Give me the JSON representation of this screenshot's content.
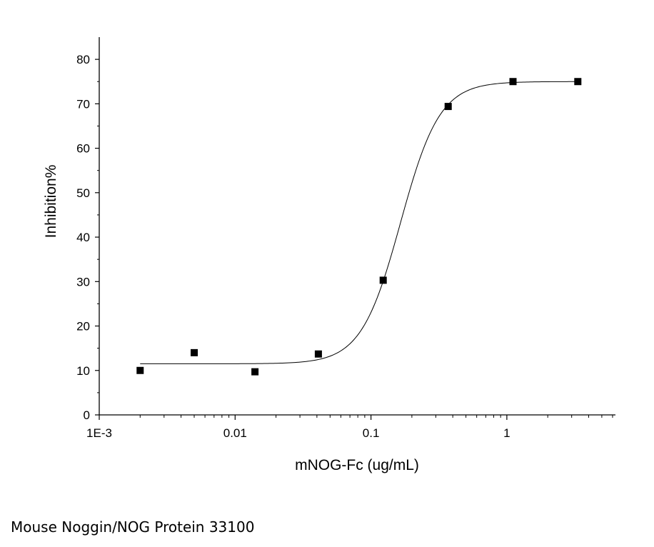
{
  "chart_data": {
    "type": "scatter",
    "xlabel": "mNOG-Fc (ug/mL)",
    "ylabel": "Inhibition%",
    "xscale": "log",
    "xlim": [
      0.001,
      6.3
    ],
    "ylim": [
      0,
      85
    ],
    "x_ticks": [
      0.001,
      0.01,
      0.1,
      1
    ],
    "x_tick_labels": [
      "1E-3",
      "0.01",
      "0.1",
      "1"
    ],
    "y_ticks": [
      0,
      10,
      20,
      30,
      40,
      50,
      60,
      70,
      80
    ],
    "y_tick_labels": [
      "0",
      "10",
      "20",
      "30",
      "40",
      "50",
      "60",
      "70",
      "80"
    ],
    "grid": false,
    "series": [
      {
        "marker": "square",
        "x": [
          0.002,
          0.005,
          0.014,
          0.041,
          0.123,
          0.37,
          1.11,
          3.33
        ],
        "y": [
          10,
          14,
          9.7,
          13.7,
          30.3,
          69.4,
          75,
          75
        ]
      }
    ],
    "fit_curve": {
      "model": "4PL",
      "bottom": 11.5,
      "top": 75,
      "ec50": 0.165,
      "hill": 3.0
    },
    "colors": {
      "marker": "#000000",
      "curve": "#000000",
      "axis": "#000000"
    }
  },
  "caption": "Mouse Noggin/NOG Protein 33100"
}
